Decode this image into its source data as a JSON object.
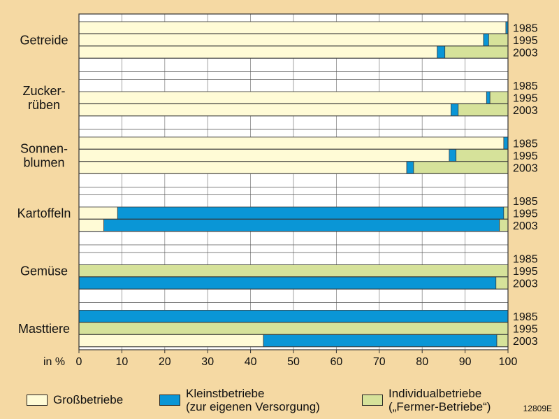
{
  "chart_data": {
    "type": "bar",
    "orientation": "horizontal",
    "stacked": true,
    "xlim": [
      0,
      100
    ],
    "xticks": [
      "0",
      "10",
      "20",
      "30",
      "40",
      "50",
      "60",
      "70",
      "80",
      "90",
      "100"
    ],
    "xaxis_prefix": "in %",
    "grid": true,
    "colors": {
      "gross": "#fffbd6",
      "klein": "#0a96d6",
      "individual": "#d6e29a",
      "background": "#f5d9a3",
      "plot_background": "#ffffff"
    },
    "series": [
      {
        "key": "gross",
        "name": "Großbetriebe"
      },
      {
        "key": "klein",
        "name": "Kleinstbetriebe\n(zur eigenen Versorgung)"
      },
      {
        "key": "individual",
        "name": "Individualbetriebe\n(„Fermer-Betriebe“)"
      }
    ],
    "groups": [
      {
        "label": "Getreide",
        "years": [
          "1985",
          "1995",
          "2003"
        ],
        "bars": [
          {
            "year": "1985",
            "gross": 99.5,
            "klein": 0.5,
            "individual": 0
          },
          {
            "year": "1995",
            "gross": 94.3,
            "klein": 1.2,
            "individual": 4.5
          },
          {
            "year": "2003",
            "gross": 83.5,
            "klein": 1.8,
            "individual": 14.7
          }
        ]
      },
      {
        "label": "Zucker-\nrüben",
        "years": [
          "1985",
          "1995",
          "2003"
        ],
        "bars": [
          {
            "year": "1985",
            "gross": null,
            "klein": null,
            "individual": null
          },
          {
            "year": "1995",
            "gross": 95,
            "klein": 0.8,
            "individual": 4.2
          },
          {
            "year": "2003",
            "gross": 86.7,
            "klein": 1.7,
            "individual": 11.6
          }
        ]
      },
      {
        "label": "Sonnen-\nblumen",
        "years": [
          "1985",
          "1995",
          "2003"
        ],
        "bars": [
          {
            "year": "1985",
            "gross": 99,
            "klein": 1,
            "individual": 0
          },
          {
            "year": "1995",
            "gross": 86.3,
            "klein": 1.6,
            "individual": 12.1
          },
          {
            "year": "2003",
            "gross": 76.4,
            "klein": 1.6,
            "individual": 22
          }
        ]
      },
      {
        "label": "Kartoffeln",
        "years": [
          "1985",
          "1995",
          "2003"
        ],
        "bars": [
          {
            "year": "1985",
            "gross": null,
            "klein": null,
            "individual": null
          },
          {
            "year": "1995",
            "gross": 9,
            "klein": 90,
            "individual": 1
          },
          {
            "year": "2003",
            "gross": 5.8,
            "klein": 92.2,
            "individual": 2
          }
        ]
      },
      {
        "label": "Gemüse",
        "years": [
          "1985",
          "1995",
          "2003"
        ],
        "bars": [
          {
            "year": "1985",
            "gross": null,
            "klein": null,
            "individual": null
          },
          {
            "year": "1995",
            "gross": 0,
            "klein": 0,
            "individual": 100
          },
          {
            "year": "2003",
            "gross": 0,
            "klein": 97.2,
            "individual": 2.8
          }
        ]
      },
      {
        "label": "Masttiere",
        "years": [
          "1985",
          "1995",
          "2003"
        ],
        "bars": [
          {
            "year": "1985",
            "gross": 0,
            "klein": 100,
            "individual": 0
          },
          {
            "year": "1995",
            "gross": 0,
            "klein": 0,
            "individual": 100
          },
          {
            "year": "2003",
            "gross": 43,
            "klein": 54.4,
            "individual": 2.6
          }
        ]
      }
    ]
  },
  "legend": {
    "items": [
      {
        "label_lines": [
          "Großbetriebe"
        ],
        "color": "#fffbd6"
      },
      {
        "label_lines": [
          "Kleinstbetriebe",
          "(zur eigenen Versorgung)"
        ],
        "color": "#0a96d6"
      },
      {
        "label_lines": [
          "Individualbetriebe",
          "(„Fermer-Betriebe“)"
        ],
        "color": "#d6e29a"
      }
    ]
  },
  "code": "12809E"
}
